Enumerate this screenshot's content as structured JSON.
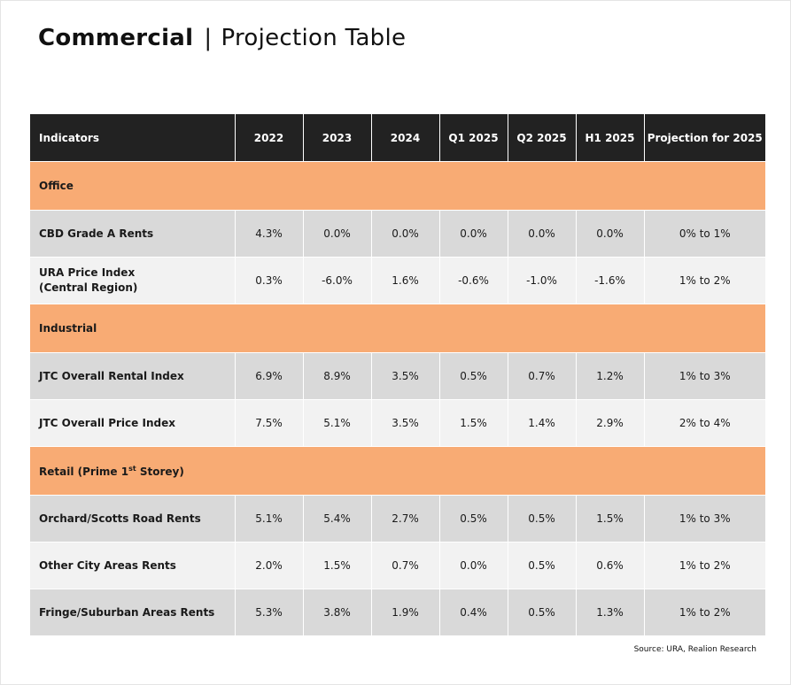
{
  "title": {
    "bold": "Commercial",
    "separator": "|",
    "light": "Projection Table"
  },
  "table": {
    "headers": [
      "Indicators",
      "2022",
      "2023",
      "2024",
      "Q1 2025",
      "Q2 2025",
      "H1 2025",
      "Projection for 2025"
    ],
    "sections": [
      {
        "name": "Office",
        "rows": [
          {
            "label": "CBD Grade A Rents",
            "values": [
              "4.3%",
              "0.0%",
              "0.0%",
              "0.0%",
              "0.0%",
              "0.0%",
              "0% to 1%"
            ]
          },
          {
            "label": "URA Price Index",
            "label2": "(Central Region)",
            "values": [
              "0.3%",
              "-6.0%",
              "1.6%",
              "-0.6%",
              "-1.0%",
              "-1.6%",
              "1% to 2%"
            ]
          }
        ]
      },
      {
        "name": "Industrial",
        "rows": [
          {
            "label": "JTC Overall Rental Index",
            "values": [
              "6.9%",
              "8.9%",
              "3.5%",
              "0.5%",
              "0.7%",
              "1.2%",
              "1% to 3%"
            ]
          },
          {
            "label": "JTC Overall Price Index",
            "values": [
              "7.5%",
              "5.1%",
              "3.5%",
              "1.5%",
              "1.4%",
              "2.9%",
              "2% to 4%"
            ]
          }
        ]
      },
      {
        "name_pre": "Retail (Prime 1",
        "name_sup": "st",
        "name_post": " Storey)",
        "rows": [
          {
            "label": "Orchard/Scotts Road Rents",
            "values": [
              "5.1%",
              "5.4%",
              "2.7%",
              "0.5%",
              "0.5%",
              "1.5%",
              "1% to 3%"
            ]
          },
          {
            "label": "Other City Areas Rents",
            "values": [
              "2.0%",
              "1.5%",
              "0.7%",
              "0.0%",
              "0.5%",
              "0.6%",
              "1% to 2%"
            ]
          },
          {
            "label": "Fringe/Suburban Areas Rents",
            "values": [
              "5.3%",
              "3.8%",
              "1.9%",
              "0.4%",
              "0.5%",
              "1.3%",
              "1% to 2%"
            ]
          }
        ]
      }
    ]
  },
  "source": "Source: URA, Realion Research",
  "colors": {
    "header_bg": "#222222",
    "section_bg": "#f8ab74",
    "row_dark": "#d9d9d9",
    "row_light": "#f2f2f2"
  }
}
